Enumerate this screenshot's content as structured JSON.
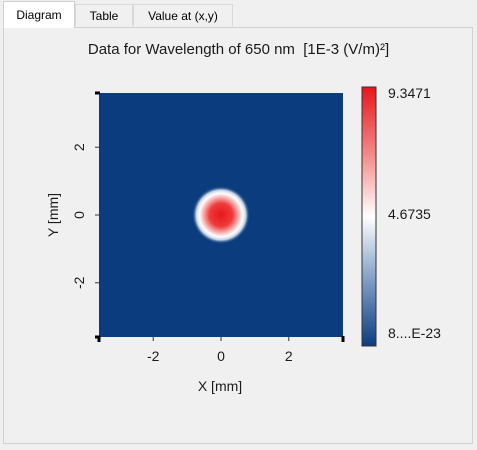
{
  "tabs": [
    {
      "label": "Diagram",
      "active": true
    },
    {
      "label": "Table",
      "active": false
    },
    {
      "label": "Value at (x,y)",
      "active": false
    }
  ],
  "colors": {
    "background_field": "#0b3d7e",
    "peak_color": "#e8161b",
    "mid_color": "#ffffff"
  },
  "chart_data": {
    "type": "heatmap",
    "title": "Data for Wavelength of 650 nm  [1E-3 (V/m)²]",
    "xlabel": "X [mm]",
    "ylabel": "Y [mm]",
    "xlim": [
      -3.6,
      3.6
    ],
    "ylim": [
      -3.6,
      3.6
    ],
    "xticks": [
      -2,
      0,
      2
    ],
    "yticks": [
      -2,
      0,
      2
    ],
    "xtick_labels": [
      "-2",
      "0",
      "2"
    ],
    "ytick_labels": [
      "-2",
      "0",
      "2"
    ],
    "peak": {
      "x": 0,
      "y": 0,
      "value": 9.3471,
      "radius_mm": 0.45
    },
    "colorbar": {
      "max_label": "9.3471",
      "mid_label": "4.6735",
      "min_label": "8....E-23",
      "max": 9.3471,
      "mid": 4.6735
    }
  }
}
